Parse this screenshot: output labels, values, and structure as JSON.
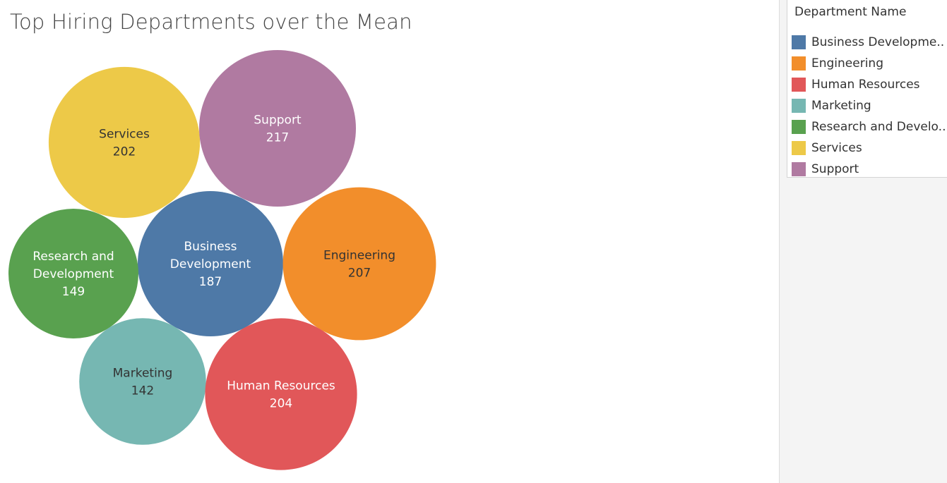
{
  "chart_data": {
    "type": "bubble",
    "title": "Top Hiring Departments over the Mean",
    "size_measure": "hires",
    "bubbles": [
      {
        "key": "services",
        "label_lines": [
          "Services"
        ],
        "value": 202,
        "color": "#EDC948",
        "text_color": "#333333"
      },
      {
        "key": "support",
        "label_lines": [
          "Support"
        ],
        "value": 217,
        "color": "#B07AA1",
        "text_color": "#ffffff"
      },
      {
        "key": "business-development",
        "label_lines": [
          "Business",
          "Development"
        ],
        "value": 187,
        "color": "#4E79A7",
        "text_color": "#ffffff"
      },
      {
        "key": "research-and-development",
        "label_lines": [
          "Research and",
          "Development"
        ],
        "value": 149,
        "color": "#59A14F",
        "text_color": "#ffffff"
      },
      {
        "key": "engineering",
        "label_lines": [
          "Engineering"
        ],
        "value": 207,
        "color": "#F28E2B",
        "text_color": "#333333"
      },
      {
        "key": "marketing",
        "label_lines": [
          "Marketing"
        ],
        "value": 142,
        "color": "#76B7B2",
        "text_color": "#333333"
      },
      {
        "key": "human-resources",
        "label_lines": [
          "Human Resources"
        ],
        "value": 204,
        "color": "#E15759",
        "text_color": "#ffffff"
      }
    ]
  },
  "legend": {
    "title": "Department Name",
    "items": [
      {
        "label": "Business Developme..",
        "color": "#4E79A7"
      },
      {
        "label": "Engineering",
        "color": "#F28E2B"
      },
      {
        "label": "Human Resources",
        "color": "#E15759"
      },
      {
        "label": "Marketing",
        "color": "#76B7B2"
      },
      {
        "label": "Research and Develo..",
        "color": "#59A14F"
      },
      {
        "label": "Services",
        "color": "#EDC948"
      },
      {
        "label": "Support",
        "color": "#B07AA1"
      }
    ]
  }
}
